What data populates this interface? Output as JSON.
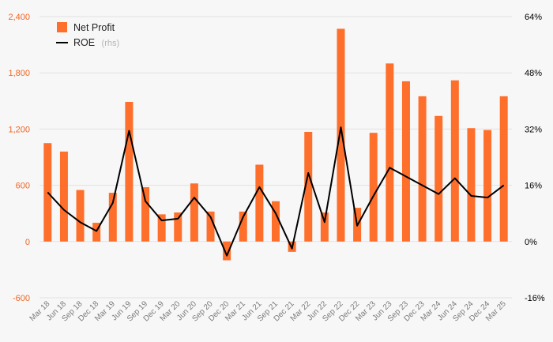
{
  "chart_data": {
    "type": "bar",
    "categories": [
      "Mar 18",
      "Jun 18",
      "Sep 18",
      "Dec 18",
      "Mar 19",
      "Jun 19",
      "Sep 19",
      "Dec 19",
      "Mar 20",
      "Jun 20",
      "Sep 20",
      "Dec 20",
      "Mar 21",
      "Jun 21",
      "Sep 21",
      "Dec 21",
      "Mar 22",
      "Jun 22",
      "Sep 22",
      "Dec 22",
      "Mar 23",
      "Jun 23",
      "Sep 23",
      "Dec 23",
      "Mar 24",
      "Jun 24",
      "Sep 24",
      "Dec 24",
      "Mar 25"
    ],
    "series": [
      {
        "name": "Net Profit",
        "type": "bar",
        "axis": "left",
        "color": "#ff6f2c",
        "values": [
          1050,
          960,
          550,
          200,
          520,
          1490,
          580,
          290,
          310,
          620,
          320,
          -200,
          320,
          820,
          430,
          -110,
          1170,
          310,
          2270,
          360,
          1160,
          1900,
          1710,
          1550,
          1340,
          1720,
          1210,
          1190,
          1550
        ]
      },
      {
        "name": "ROE",
        "type": "line",
        "axis": "right",
        "color": "#000000",
        "values": [
          14,
          9,
          5.5,
          3,
          11,
          31.5,
          11.5,
          6,
          6.5,
          12.5,
          7,
          -4,
          7,
          15.5,
          8,
          -2,
          19.5,
          5.5,
          32.5,
          4.5,
          13,
          21,
          18.5,
          16,
          13.5,
          18,
          13,
          12.5,
          16
        ]
      }
    ],
    "ylim": [
      -600,
      2400
    ],
    "yticks": [
      -600,
      0,
      600,
      1200,
      1800,
      2400
    ],
    "ytick_labels": [
      "-600",
      "0",
      "600",
      "1,200",
      "1,800",
      "2,400"
    ],
    "y2lim": [
      -16,
      64
    ],
    "y2ticks": [
      -16,
      0,
      16,
      32,
      48,
      64
    ],
    "y2tick_labels": [
      "-16%",
      "0%",
      "16%",
      "32%",
      "48%",
      "64%"
    ],
    "grid": true,
    "legend": {
      "position": "top-left",
      "bar_label": "Net Profit",
      "line_label": "ROE",
      "line_suffix": "(rhs)"
    },
    "colors": {
      "bar": "#ff6f2c",
      "line": "#000000",
      "left_axis": "#f26522",
      "right_axis": "#000000",
      "grid": "#e2e2e2"
    }
  }
}
